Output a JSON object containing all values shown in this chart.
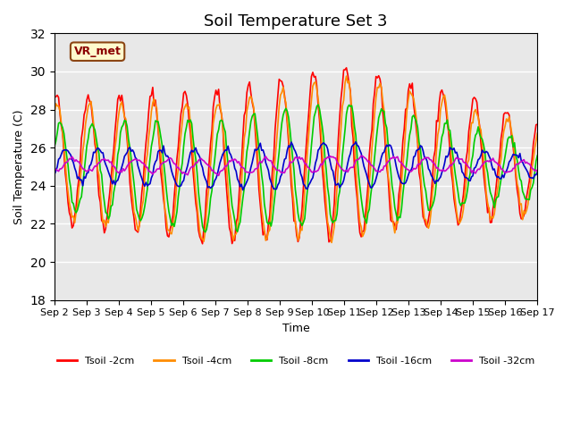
{
  "title": "Soil Temperature Set 3",
  "xlabel": "Time",
  "ylabel": "Soil Temperature (C)",
  "ylim": [
    18,
    32
  ],
  "yticks": [
    18,
    20,
    22,
    24,
    26,
    28,
    30,
    32
  ],
  "x_labels": [
    "Sep 2",
    "Sep 3",
    "Sep 4",
    "Sep 5",
    "Sep 6",
    "Sep 7",
    "Sep 8",
    "Sep 9",
    "Sep 10",
    "Sep 11",
    "Sep 12",
    "Sep 13",
    "Sep 14",
    "Sep 15",
    "Sep 16",
    "Sep 17"
  ],
  "series_names": [
    "Tsoil -2cm",
    "Tsoil -4cm",
    "Tsoil -8cm",
    "Tsoil -16cm",
    "Tsoil -32cm"
  ],
  "series_colors": [
    "#ff0000",
    "#ff8c00",
    "#00cc00",
    "#0000cc",
    "#cc00cc"
  ],
  "annotation_text": "VR_met",
  "bg_color": "#e8e8e8",
  "fig_bg": "#ffffff"
}
